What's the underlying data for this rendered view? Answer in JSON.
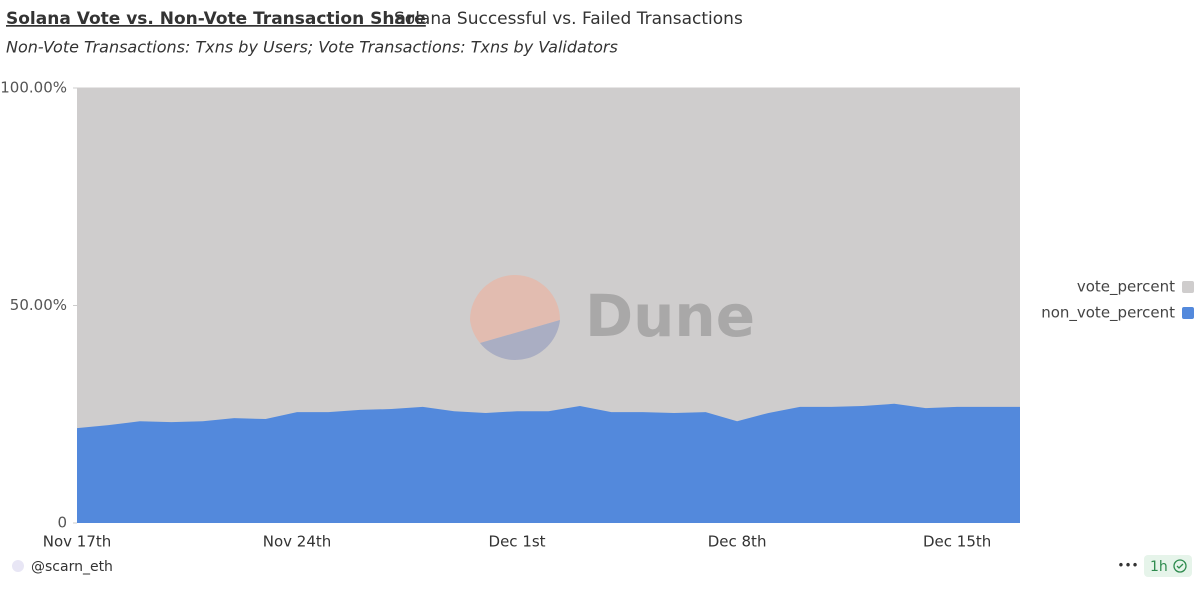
{
  "tabs": [
    "Solana Vote vs. Non-Vote Transaction Share",
    "Solana Successful vs. Failed Transactions"
  ],
  "author": "@scarn_eth",
  "refresh": "1h",
  "menu": "•••",
  "chart_data": {
    "type": "stacked_area",
    "subtitle": "Non-Vote Transactions: Txns by Users; Vote Transactions: Txns by Validators",
    "watermark": "Dune",
    "categories": [
      "Nov 17th",
      null,
      null,
      null,
      null,
      null,
      null,
      "Nov 24th",
      null,
      null,
      null,
      null,
      null,
      null,
      "Dec 1st",
      null,
      null,
      null,
      null,
      null,
      null,
      "Dec 8th",
      null,
      null,
      null,
      null,
      null,
      null,
      "Dec 15th",
      null,
      null
    ],
    "series": [
      {
        "name": "vote_percent",
        "color": "#cfcdcd",
        "values": [
          78.2,
          77.5,
          76.6,
          76.8,
          76.6,
          75.9,
          76.1,
          74.5,
          74.5,
          74.0,
          73.8,
          73.3,
          74.3,
          74.7,
          74.3,
          74.3,
          73.1,
          74.5,
          74.5,
          74.7,
          74.5,
          76.6,
          74.7,
          73.3,
          73.3,
          73.1,
          72.6,
          73.6,
          73.3,
          73.3,
          73.3
        ]
      },
      {
        "name": "non_vote_percent",
        "color": "#5389dc",
        "values": [
          21.8,
          22.5,
          23.4,
          23.2,
          23.4,
          24.1,
          23.9,
          25.5,
          25.5,
          26.0,
          26.2,
          26.7,
          25.7,
          25.3,
          25.7,
          25.7,
          26.9,
          25.5,
          25.5,
          25.3,
          25.5,
          23.4,
          25.3,
          26.7,
          26.7,
          26.9,
          27.4,
          26.4,
          26.7,
          26.7,
          26.7
        ]
      }
    ],
    "ylim": [
      0,
      100
    ],
    "yticks": [
      {
        "value": 0,
        "label": "0"
      },
      {
        "value": 50,
        "label": "50.00%"
      },
      {
        "value": 100,
        "label": "100.00%"
      }
    ],
    "legend": "right"
  }
}
